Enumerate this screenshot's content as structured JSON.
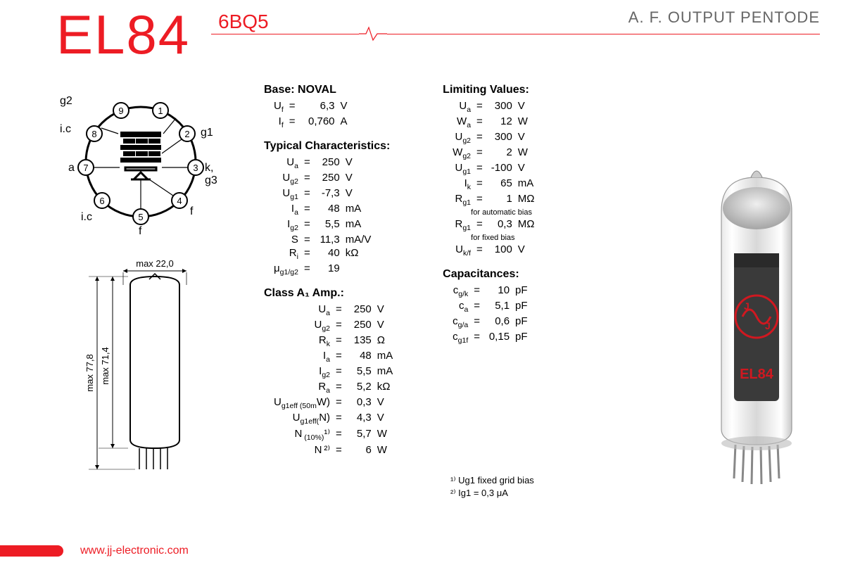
{
  "header": {
    "title": "EL84",
    "alt": "6BQ5",
    "tagline": "A. F. OUTPUT PENTODE",
    "accent_color": "#ed1c24"
  },
  "pinout": {
    "pins": [
      {
        "n": 1,
        "label": ""
      },
      {
        "n": 2,
        "label": "g1"
      },
      {
        "n": 3,
        "label": "k, g3"
      },
      {
        "n": 4,
        "label": "f"
      },
      {
        "n": 5,
        "label": "f"
      },
      {
        "n": 6,
        "label": "i.c"
      },
      {
        "n": 7,
        "label": "a"
      },
      {
        "n": 8,
        "label": "i.c"
      },
      {
        "n": 9,
        "label": "g2"
      }
    ]
  },
  "dimensions": {
    "width_label": "max 22,0",
    "height_inner_label": "max 71,4",
    "height_outer_label": "max 77,8"
  },
  "sections": {
    "base": {
      "title": "Base: NOVAL",
      "rows": [
        {
          "sym": "Uf",
          "val": "6,3",
          "unit": "V"
        },
        {
          "sym": "If",
          "val": "0,760",
          "unit": "A"
        }
      ]
    },
    "typical": {
      "title": "Typical Characteristics:",
      "rows": [
        {
          "sym": "Ua",
          "val": "250",
          "unit": "V"
        },
        {
          "sym": "Ug2",
          "val": "250",
          "unit": "V"
        },
        {
          "sym": "Ug1",
          "val": "-7,3",
          "unit": "V"
        },
        {
          "sym": "Ia",
          "val": "48",
          "unit": "mA"
        },
        {
          "sym": "Ig2",
          "val": "5,5",
          "unit": "mA"
        },
        {
          "sym": "S",
          "val": "11,3",
          "unit": "mA/V"
        },
        {
          "sym": "Ri",
          "val": "40",
          "unit": "kΩ"
        },
        {
          "sym": "μg1/g2",
          "val": "19",
          "unit": ""
        }
      ]
    },
    "classA": {
      "title": "Class A₁ Amp.:",
      "rows": [
        {
          "sym": "Ua",
          "val": "250",
          "unit": "V"
        },
        {
          "sym": "Ug2",
          "val": "250",
          "unit": "V"
        },
        {
          "sym": "Rk",
          "val": "135",
          "unit": "Ω"
        },
        {
          "sym": "Ia",
          "val": "48",
          "unit": "mA"
        },
        {
          "sym": "Ig2",
          "val": "5,5",
          "unit": "mA"
        },
        {
          "sym": "Ra",
          "val": "5,2",
          "unit": "kΩ"
        },
        {
          "sym": "Ug1eff (50mW)",
          "val": "0,3",
          "unit": "V"
        },
        {
          "sym": "Ug1eff(N)",
          "val": "4,3",
          "unit": "V"
        },
        {
          "sym": "N (10%)¹⁾",
          "val": "5,7",
          "unit": "W"
        },
        {
          "sym": "N ²⁾",
          "val": "6",
          "unit": "W"
        }
      ]
    },
    "limiting": {
      "title": "Limiting Values:",
      "rows": [
        {
          "sym": "Ua",
          "val": "300",
          "unit": "V"
        },
        {
          "sym": "Wa",
          "val": "12",
          "unit": "W"
        },
        {
          "sym": "Ug2",
          "val": "300",
          "unit": "V"
        },
        {
          "sym": "Wg2",
          "val": "2",
          "unit": "W"
        },
        {
          "sym": "Ug1",
          "val": "-100",
          "unit": "V"
        },
        {
          "sym": "Ik",
          "val": "65",
          "unit": "mA"
        },
        {
          "sym": "Rg1",
          "val": "1",
          "unit": "MΩ",
          "note": "for automatic bias"
        },
        {
          "sym": "Rg1",
          "val": "0,3",
          "unit": "MΩ",
          "note": "for fixed bias"
        },
        {
          "sym": "Uk/f",
          "val": "100",
          "unit": "V"
        }
      ]
    },
    "capacitances": {
      "title": "Capacitances:",
      "rows": [
        {
          "sym": "cg/k",
          "val": "10",
          "unit": "pF"
        },
        {
          "sym": "ca",
          "val": "5,1",
          "unit": "pF"
        },
        {
          "sym": "cg/a",
          "val": "0,6",
          "unit": "pF"
        },
        {
          "sym": "cg1f",
          "val": "0,15",
          "unit": "pF"
        }
      ]
    }
  },
  "footnotes": [
    "¹⁾ Ug1 fixed grid bias",
    "²⁾ Ig1 = 0,3 μA"
  ],
  "tube_label": "EL84",
  "footer": {
    "url": "www.jj-electronic.com"
  }
}
